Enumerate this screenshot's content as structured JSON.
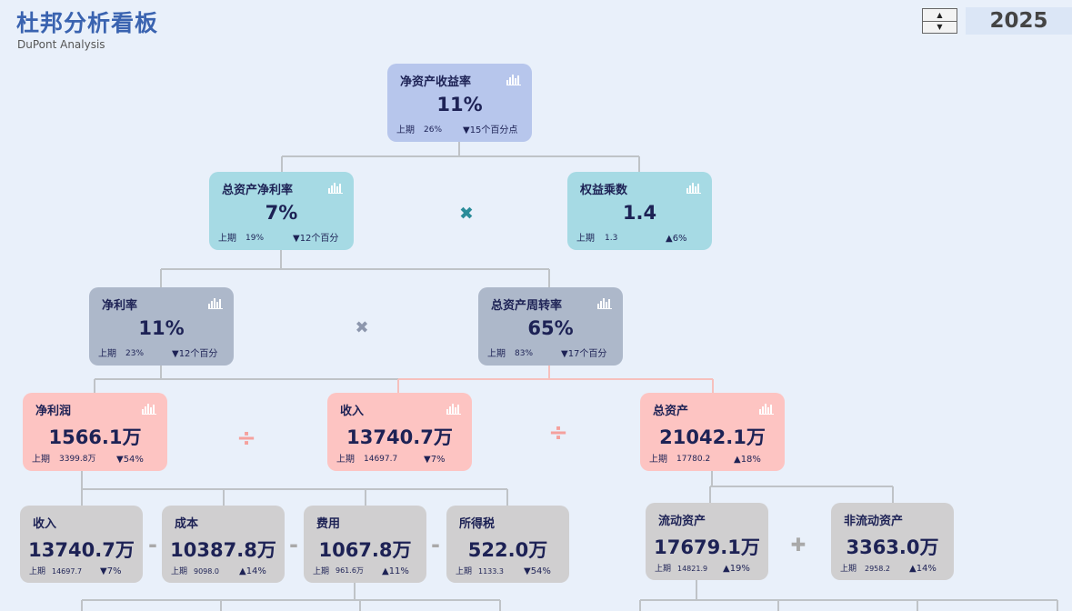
{
  "header": {
    "title": "杜邦分析看板",
    "subtitle": "DuPont Analysis",
    "year": "2025"
  },
  "spinner": {
    "up": "▲",
    "down": "▼"
  },
  "operators": {
    "multiply": "✖",
    "divide": "÷",
    "minus": "-",
    "plus": "✚"
  },
  "prev_label": "上期",
  "colors": {
    "accent": "#3a63b0",
    "blue": "#b7c6ec",
    "teal": "#a6dae4",
    "slate": "#adb8ca",
    "pink": "#fdc4c2",
    "gray": "#d0cfd0",
    "text": "#1d2255"
  },
  "cards": {
    "roe": {
      "name": "净资产收益率",
      "value": "11%",
      "prev": "26%",
      "change": "▼15个百分点"
    },
    "roa": {
      "name": "总资产净利率",
      "value": "7%",
      "prev": "19%",
      "change": "▼12个百分"
    },
    "equity_multiplier": {
      "name": "权益乘数",
      "value": "1.4",
      "prev": "1.3",
      "change": "▲6%"
    },
    "net_margin": {
      "name": "净利率",
      "value": "11%",
      "prev": "23%",
      "change": "▼12个百分"
    },
    "asset_turnover": {
      "name": "总资产周转率",
      "value": "65%",
      "prev": "83%",
      "change": "▼17个百分"
    },
    "net_profit": {
      "name": "净利润",
      "value": "1566.1万",
      "prev": "3399.8万",
      "change": "▼54%"
    },
    "revenue_mid": {
      "name": "收入",
      "value": "13740.7万",
      "prev": "14697.7",
      "change": "▼7%"
    },
    "total_assets": {
      "name": "总资产",
      "value": "21042.1万",
      "prev": "17780.2",
      "change": "▲18%"
    },
    "revenue": {
      "name": "收入",
      "value": "13740.7万",
      "prev": "14697.7",
      "change": "▼7%"
    },
    "cost": {
      "name": "成本",
      "value": "10387.8万",
      "prev": "9098.0",
      "change": "▲14%"
    },
    "expense": {
      "name": "费用",
      "value": "1067.8万",
      "prev": "961.6万",
      "change": "▲11%"
    },
    "income_tax": {
      "name": "所得税",
      "value": "522.0万",
      "prev": "1133.3",
      "change": "▼54%"
    },
    "current_assets": {
      "name": "流动资产",
      "value": "17679.1万",
      "prev": "14821.9",
      "change": "▲19%"
    },
    "noncurrent_assets": {
      "name": "非流动资产",
      "value": "3363.0万",
      "prev": "2958.2",
      "change": "▲14%"
    }
  }
}
